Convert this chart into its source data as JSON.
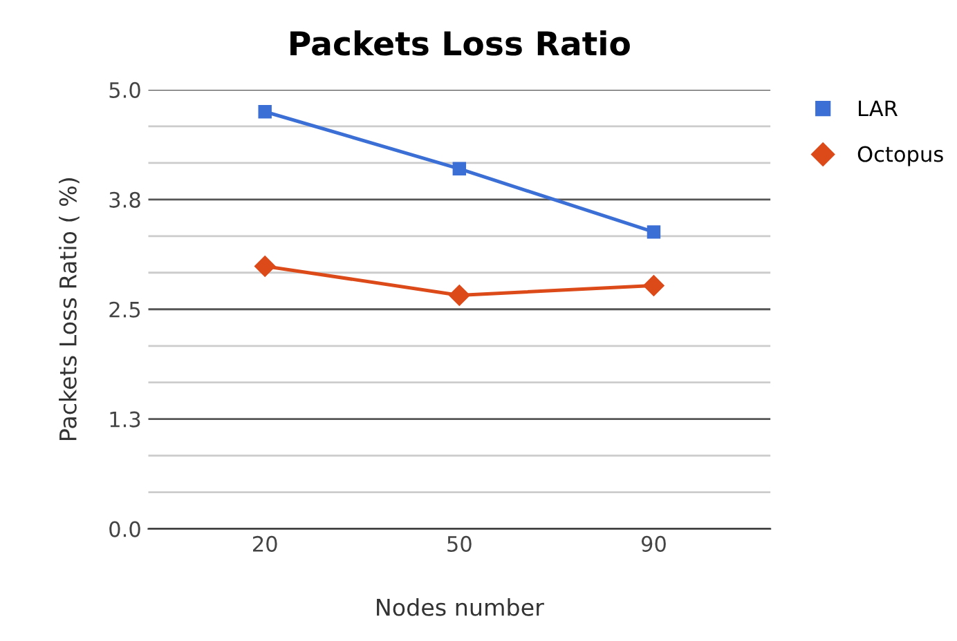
{
  "chart_data": {
    "type": "line",
    "title": "Packets Loss Ratio",
    "xlabel": "Nodes number",
    "ylabel": "Packets Loss Ratio ( %)",
    "categories": [
      "20",
      "50",
      "90"
    ],
    "series": [
      {
        "name": "LAR",
        "color": "#3c6fd6",
        "values": [
          4.75,
          4.1,
          3.38
        ],
        "marker": "square"
      },
      {
        "name": "Octopus",
        "color": "#dd4a1a",
        "values": [
          2.99,
          2.66,
          2.77
        ],
        "marker": "diamond"
      }
    ],
    "ylim": [
      0,
      5.0
    ],
    "yticks": [
      {
        "value": 0,
        "label": "0.0"
      },
      {
        "value": 0.417,
        "label": null
      },
      {
        "value": 0.833,
        "label": null
      },
      {
        "value": 1.25,
        "label": "1.3"
      },
      {
        "value": 1.667,
        "label": null
      },
      {
        "value": 2.083,
        "label": null
      },
      {
        "value": 2.5,
        "label": "2.5"
      },
      {
        "value": 2.917,
        "label": null
      },
      {
        "value": 3.333,
        "label": null
      },
      {
        "value": 3.75,
        "label": "3.8"
      },
      {
        "value": 4.167,
        "label": null
      },
      {
        "value": 4.583,
        "label": null
      },
      {
        "value": 5.0,
        "label": "5.0"
      }
    ],
    "grid": "y",
    "legend": "top right",
    "line_style": "solid"
  }
}
